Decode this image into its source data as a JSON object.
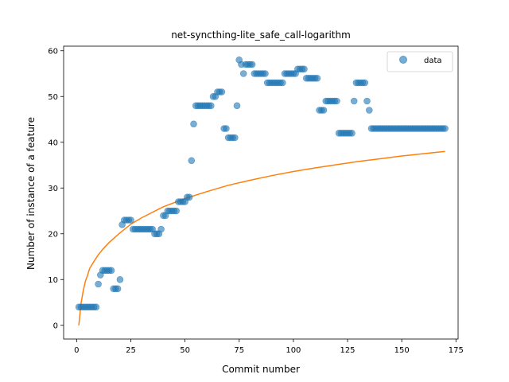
{
  "chart_data": {
    "type": "scatter",
    "title": "net-syncthing-lite_safe_call-logarithm",
    "xlabel": "Commit number",
    "ylabel": "Number of instance of a feature",
    "xlim": [
      -6,
      176
    ],
    "ylim": [
      -3,
      61
    ],
    "xticks": [
      0,
      25,
      50,
      75,
      100,
      125,
      150,
      175
    ],
    "yticks": [
      0,
      10,
      20,
      30,
      40,
      50,
      60
    ],
    "legend": {
      "position": "top-right",
      "entries": [
        "data"
      ]
    },
    "colors": {
      "data": "#1f77b4",
      "fit": "#ff7f0e"
    },
    "series": [
      {
        "name": "data",
        "kind": "scatter",
        "points": [
          [
            1,
            4
          ],
          [
            2,
            4
          ],
          [
            3,
            4
          ],
          [
            4,
            4
          ],
          [
            5,
            4
          ],
          [
            6,
            4
          ],
          [
            7,
            4
          ],
          [
            8,
            4
          ],
          [
            9,
            4
          ],
          [
            10,
            9
          ],
          [
            11,
            11
          ],
          [
            12,
            12
          ],
          [
            13,
            12
          ],
          [
            14,
            12
          ],
          [
            15,
            12
          ],
          [
            16,
            12
          ],
          [
            17,
            8
          ],
          [
            18,
            8
          ],
          [
            19,
            8
          ],
          [
            20,
            10
          ],
          [
            21,
            22
          ],
          [
            22,
            23
          ],
          [
            23,
            23
          ],
          [
            24,
            23
          ],
          [
            25,
            23
          ],
          [
            26,
            21
          ],
          [
            27,
            21
          ],
          [
            28,
            21
          ],
          [
            29,
            21
          ],
          [
            30,
            21
          ],
          [
            31,
            21
          ],
          [
            32,
            21
          ],
          [
            33,
            21
          ],
          [
            34,
            21
          ],
          [
            35,
            21
          ],
          [
            36,
            20
          ],
          [
            37,
            20
          ],
          [
            38,
            20
          ],
          [
            39,
            21
          ],
          [
            40,
            24
          ],
          [
            41,
            24
          ],
          [
            42,
            25
          ],
          [
            43,
            25
          ],
          [
            44,
            25
          ],
          [
            45,
            25
          ],
          [
            46,
            25
          ],
          [
            47,
            27
          ],
          [
            48,
            27
          ],
          [
            49,
            27
          ],
          [
            50,
            27
          ],
          [
            51,
            28
          ],
          [
            52,
            28
          ],
          [
            53,
            36
          ],
          [
            54,
            44
          ],
          [
            55,
            48
          ],
          [
            56,
            48
          ],
          [
            57,
            48
          ],
          [
            58,
            48
          ],
          [
            59,
            48
          ],
          [
            60,
            48
          ],
          [
            61,
            48
          ],
          [
            62,
            48
          ],
          [
            63,
            50
          ],
          [
            64,
            50
          ],
          [
            65,
            51
          ],
          [
            66,
            51
          ],
          [
            67,
            51
          ],
          [
            68,
            43
          ],
          [
            69,
            43
          ],
          [
            70,
            41
          ],
          [
            71,
            41
          ],
          [
            72,
            41
          ],
          [
            73,
            41
          ],
          [
            74,
            48
          ],
          [
            75,
            58
          ],
          [
            76,
            57
          ],
          [
            77,
            55
          ],
          [
            78,
            57
          ],
          [
            79,
            57
          ],
          [
            80,
            57
          ],
          [
            81,
            57
          ],
          [
            82,
            55
          ],
          [
            83,
            55
          ],
          [
            84,
            55
          ],
          [
            85,
            55
          ],
          [
            86,
            55
          ],
          [
            87,
            55
          ],
          [
            88,
            53
          ],
          [
            89,
            53
          ],
          [
            90,
            53
          ],
          [
            91,
            53
          ],
          [
            92,
            53
          ],
          [
            93,
            53
          ],
          [
            94,
            53
          ],
          [
            95,
            53
          ],
          [
            96,
            55
          ],
          [
            97,
            55
          ],
          [
            98,
            55
          ],
          [
            99,
            55
          ],
          [
            100,
            55
          ],
          [
            101,
            55
          ],
          [
            102,
            56
          ],
          [
            103,
            56
          ],
          [
            104,
            56
          ],
          [
            105,
            56
          ],
          [
            106,
            54
          ],
          [
            107,
            54
          ],
          [
            108,
            54
          ],
          [
            109,
            54
          ],
          [
            110,
            54
          ],
          [
            111,
            54
          ],
          [
            112,
            47
          ],
          [
            113,
            47
          ],
          [
            114,
            47
          ],
          [
            115,
            49
          ],
          [
            116,
            49
          ],
          [
            117,
            49
          ],
          [
            118,
            49
          ],
          [
            119,
            49
          ],
          [
            120,
            49
          ],
          [
            121,
            42
          ],
          [
            122,
            42
          ],
          [
            123,
            42
          ],
          [
            124,
            42
          ],
          [
            125,
            42
          ],
          [
            126,
            42
          ],
          [
            127,
            42
          ],
          [
            128,
            49
          ],
          [
            129,
            53
          ],
          [
            130,
            53
          ],
          [
            131,
            53
          ],
          [
            132,
            53
          ],
          [
            133,
            53
          ],
          [
            134,
            49
          ],
          [
            135,
            47
          ],
          [
            136,
            43
          ],
          [
            137,
            43
          ],
          [
            138,
            43
          ],
          [
            139,
            43
          ],
          [
            140,
            43
          ],
          [
            141,
            43
          ],
          [
            142,
            43
          ],
          [
            143,
            43
          ],
          [
            144,
            43
          ],
          [
            145,
            43
          ],
          [
            146,
            43
          ],
          [
            147,
            43
          ],
          [
            148,
            43
          ],
          [
            149,
            43
          ],
          [
            150,
            43
          ],
          [
            151,
            43
          ],
          [
            152,
            43
          ],
          [
            153,
            43
          ],
          [
            154,
            43
          ],
          [
            155,
            43
          ],
          [
            156,
            43
          ],
          [
            157,
            43
          ],
          [
            158,
            43
          ],
          [
            159,
            43
          ],
          [
            160,
            43
          ],
          [
            161,
            43
          ],
          [
            162,
            43
          ],
          [
            163,
            43
          ],
          [
            164,
            43
          ],
          [
            165,
            43
          ],
          [
            166,
            43
          ],
          [
            167,
            43
          ],
          [
            168,
            43
          ],
          [
            169,
            43
          ],
          [
            170,
            43
          ]
        ]
      },
      {
        "kind": "line",
        "model": "logarithmic",
        "x_range": [
          1,
          170
        ],
        "points": [
          [
            1,
            0
          ],
          [
            2,
            4.7
          ],
          [
            3,
            7.4
          ],
          [
            4,
            9.6
          ],
          [
            5,
            10.9
          ],
          [
            6,
            12.4
          ],
          [
            8,
            14.0
          ],
          [
            10,
            15.4
          ],
          [
            12,
            16.6
          ],
          [
            15,
            18.1
          ],
          [
            20,
            20.2
          ],
          [
            25,
            22.1
          ],
          [
            30,
            23.5
          ],
          [
            40,
            25.9
          ],
          [
            50,
            27.7
          ],
          [
            60,
            29.2
          ],
          [
            70,
            30.6
          ],
          [
            80,
            31.7
          ],
          [
            90,
            32.7
          ],
          [
            100,
            33.6
          ],
          [
            110,
            34.4
          ],
          [
            120,
            35.1
          ],
          [
            130,
            35.8
          ],
          [
            140,
            36.4
          ],
          [
            150,
            37.0
          ],
          [
            160,
            37.5
          ],
          [
            170,
            38.0
          ]
        ]
      }
    ]
  }
}
